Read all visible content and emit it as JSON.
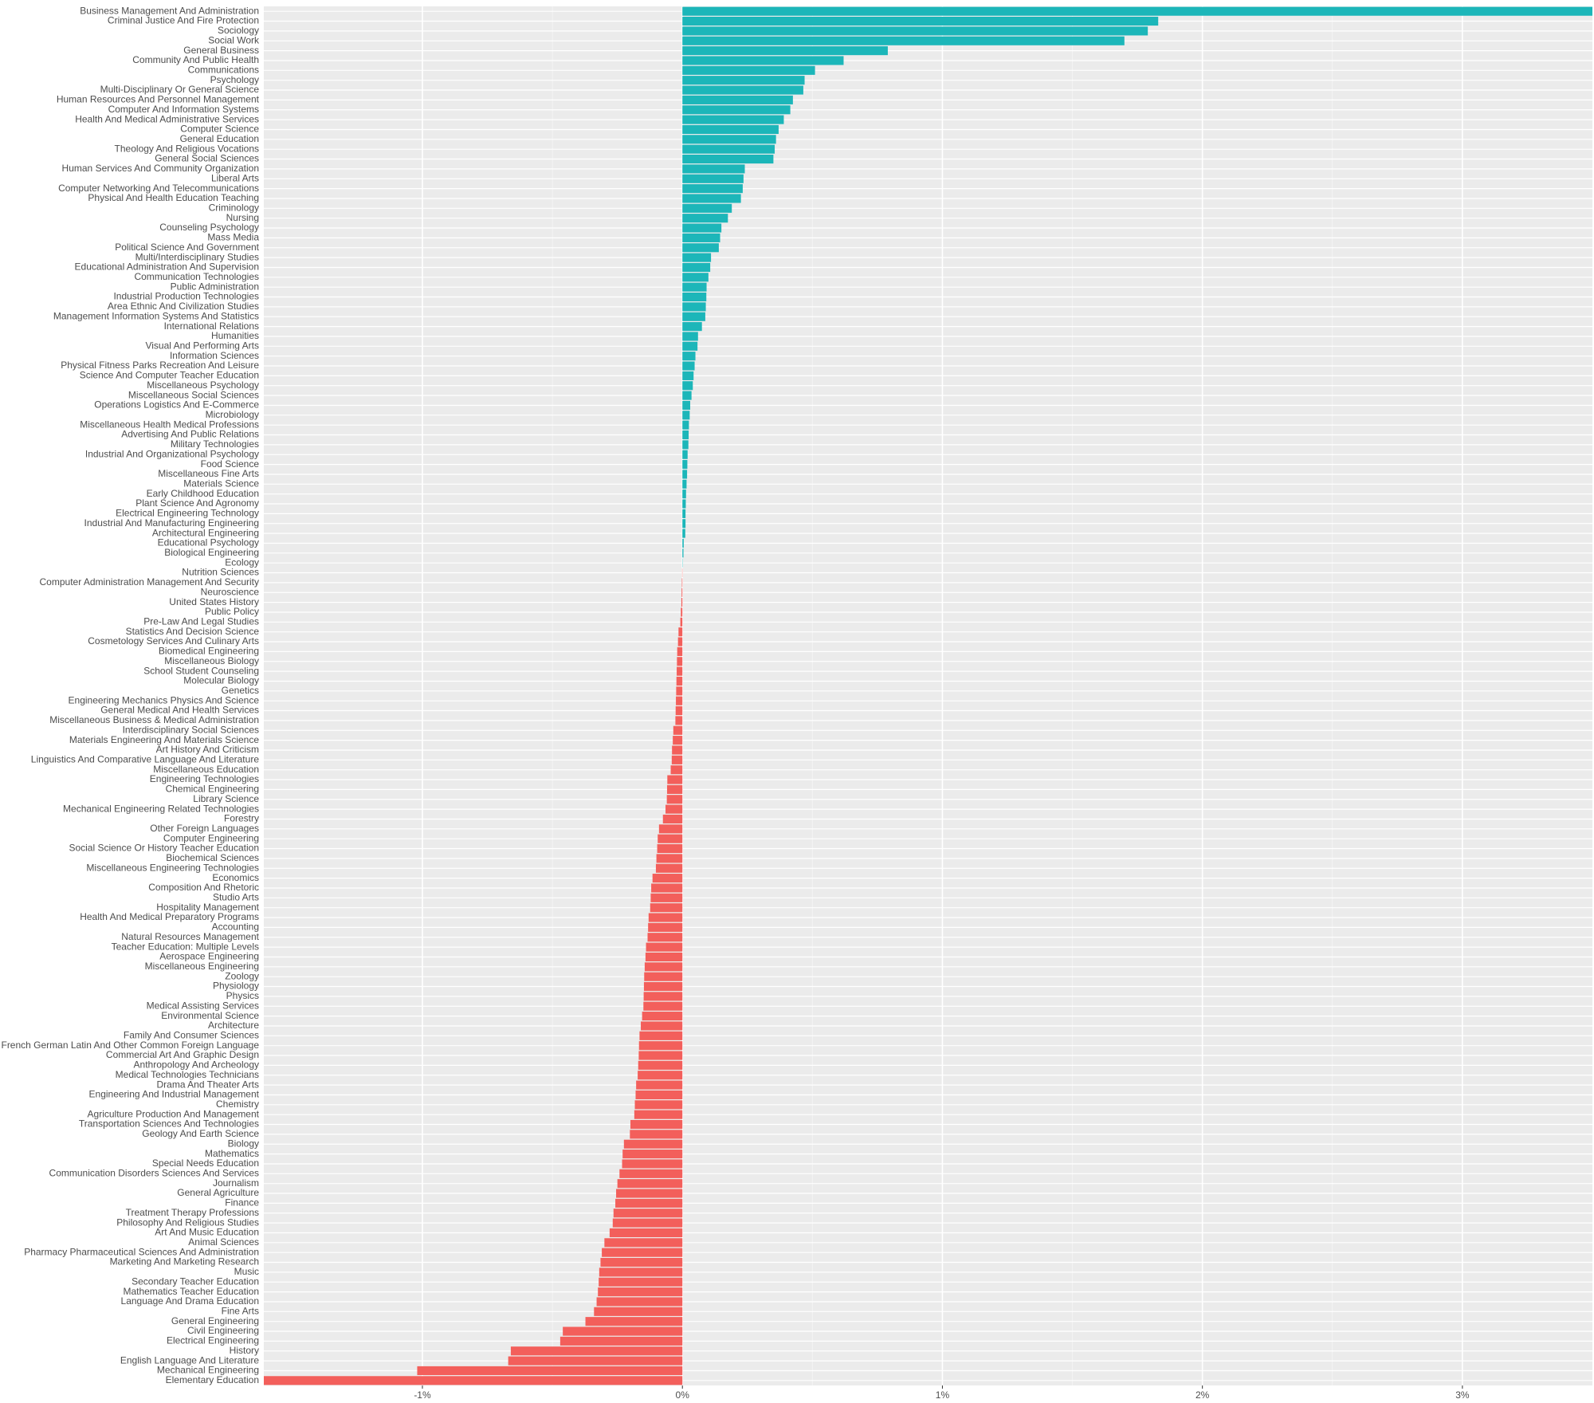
{
  "chart_data": {
    "type": "barh",
    "categories": [
      "Business Management And Administration",
      "Criminal Justice And Fire Protection",
      "Sociology",
      "Social Work",
      "General Business",
      "Community And Public Health",
      "Communications",
      "Psychology",
      "Multi-Disciplinary Or General Science",
      "Human Resources And Personnel Management",
      "Computer And Information Systems",
      "Health And Medical Administrative Services",
      "Computer Science",
      "General Education",
      "Theology And Religious Vocations",
      "General Social Sciences",
      "Human Services And Community Organization",
      "Liberal Arts",
      "Computer Networking And Telecommunications",
      "Physical And Health Education Teaching",
      "Criminology",
      "Nursing",
      "Counseling Psychology",
      "Mass Media",
      "Political Science And Government",
      "Multi/Interdisciplinary Studies",
      "Educational Administration And Supervision",
      "Communication Technologies",
      "Public Administration",
      "Industrial Production Technologies",
      "Area Ethnic And Civilization Studies",
      "Management Information Systems And Statistics",
      "International Relations",
      "Humanities",
      "Visual And Performing Arts",
      "Information Sciences",
      "Physical Fitness Parks Recreation And Leisure",
      "Science And Computer Teacher Education",
      "Miscellaneous Psychology",
      "Miscellaneous Social Sciences",
      "Operations Logistics And E-Commerce",
      "Microbiology",
      "Miscellaneous Health Medical Professions",
      "Advertising And Public Relations",
      "Military Technologies",
      "Industrial And Organizational Psychology",
      "Food Science",
      "Miscellaneous Fine Arts",
      "Materials Science",
      "Early Childhood Education",
      "Plant Science And Agronomy",
      "Electrical Engineering Technology",
      "Industrial And Manufacturing Engineering",
      "Architectural Engineering",
      "Educational Psychology",
      "Biological Engineering",
      "Ecology",
      "Nutrition Sciences",
      "Computer Administration Management And Security",
      "Neuroscience",
      "United States History",
      "Public Policy",
      "Pre-Law And Legal Studies",
      "Statistics And Decision Science",
      "Cosmetology Services And Culinary Arts",
      "Biomedical Engineering",
      "Miscellaneous Biology",
      "School Student Counseling",
      "Molecular Biology",
      "Genetics",
      "Engineering Mechanics Physics And Science",
      "General Medical And Health Services",
      "Miscellaneous Business & Medical Administration",
      "Interdisciplinary Social Sciences",
      "Materials Engineering And Materials Science",
      "Art History And Criticism",
      "Linguistics And Comparative Language And Literature",
      "Miscellaneous Education",
      "Engineering Technologies",
      "Chemical Engineering",
      "Library Science",
      "Mechanical Engineering Related Technologies",
      "Forestry",
      "Other Foreign Languages",
      "Computer Engineering",
      "Social Science Or History Teacher Education",
      "Biochemical Sciences",
      "Miscellaneous Engineering Technologies",
      "Economics",
      "Composition And Rhetoric",
      "Studio Arts",
      "Hospitality Management",
      "Health And Medical Preparatory Programs",
      "Accounting",
      "Natural Resources Management",
      "Teacher Education: Multiple Levels",
      "Aerospace Engineering",
      "Miscellaneous Engineering",
      "Zoology",
      "Physiology",
      "Physics",
      "Medical Assisting Services",
      "Environmental Science",
      "Architecture",
      "Family And Consumer Sciences",
      "French German Latin And Other Common Foreign Language",
      "Commercial Art And Graphic Design",
      "Anthropology And Archeology",
      "Medical Technologies Technicians",
      "Drama And Theater Arts",
      "Engineering And Industrial Management",
      "Chemistry",
      "Agriculture Production And Management",
      "Transportation Sciences And Technologies",
      "Geology And Earth Science",
      "Biology",
      "Mathematics",
      "Special Needs Education",
      "Communication Disorders Sciences And Services",
      "Journalism",
      "General Agriculture",
      "Finance",
      "Treatment Therapy Professions",
      "Philosophy And Religious Studies",
      "Art And Music Education",
      "Animal Sciences",
      "Pharmacy Pharmaceutical Sciences And Administration",
      "Marketing And Marketing Research",
      "Music",
      "Secondary Teacher Education",
      "Mathematics Teacher Education",
      "Language And Drama Education",
      "Fine Arts",
      "General Engineering",
      "Civil Engineering",
      "Electrical Engineering",
      "History",
      "English Language And Literature",
      "Mechanical Engineering",
      "Elementary Education"
    ],
    "values": [
      3.5,
      1.83,
      1.79,
      1.7,
      0.79,
      0.62,
      0.51,
      0.47,
      0.465,
      0.425,
      0.415,
      0.39,
      0.37,
      0.36,
      0.355,
      0.35,
      0.24,
      0.235,
      0.232,
      0.225,
      0.19,
      0.175,
      0.15,
      0.145,
      0.14,
      0.11,
      0.107,
      0.1,
      0.093,
      0.092,
      0.09,
      0.088,
      0.075,
      0.06,
      0.058,
      0.05,
      0.047,
      0.043,
      0.04,
      0.035,
      0.03,
      0.028,
      0.025,
      0.024,
      0.023,
      0.02,
      0.019,
      0.018,
      0.016,
      0.014,
      0.013,
      0.012,
      0.012,
      0.011,
      0.005,
      0.004,
      0.001,
      -0.001,
      -0.002,
      -0.003,
      -0.004,
      -0.006,
      -0.008,
      -0.015,
      -0.017,
      -0.02,
      -0.021,
      -0.022,
      -0.023,
      -0.024,
      -0.025,
      -0.026,
      -0.027,
      -0.035,
      -0.037,
      -0.04,
      -0.041,
      -0.045,
      -0.058,
      -0.059,
      -0.06,
      -0.065,
      -0.075,
      -0.09,
      -0.095,
      -0.097,
      -0.1,
      -0.102,
      -0.115,
      -0.12,
      -0.122,
      -0.124,
      -0.13,
      -0.132,
      -0.134,
      -0.14,
      -0.142,
      -0.145,
      -0.147,
      -0.148,
      -0.149,
      -0.15,
      -0.155,
      -0.16,
      -0.165,
      -0.167,
      -0.168,
      -0.17,
      -0.172,
      -0.178,
      -0.18,
      -0.183,
      -0.185,
      -0.2,
      -0.202,
      -0.225,
      -0.23,
      -0.232,
      -0.242,
      -0.25,
      -0.255,
      -0.258,
      -0.265,
      -0.268,
      -0.28,
      -0.3,
      -0.31,
      -0.315,
      -0.32,
      -0.322,
      -0.325,
      -0.33,
      -0.34,
      -0.373,
      -0.46,
      -0.47,
      -0.66,
      -0.67,
      -1.02,
      -1.61
    ],
    "positive_color": "#1cb6b9",
    "negative_color": "#f35f5b",
    "xlim": [
      -1.61,
      3.5
    ],
    "xticks": [
      {
        "value": -1,
        "label": "-1%"
      },
      {
        "value": 0,
        "label": "0%"
      },
      {
        "value": 1,
        "label": "1%"
      },
      {
        "value": 2,
        "label": "2%"
      },
      {
        "value": 3,
        "label": "3%"
      }
    ],
    "grid": true
  }
}
